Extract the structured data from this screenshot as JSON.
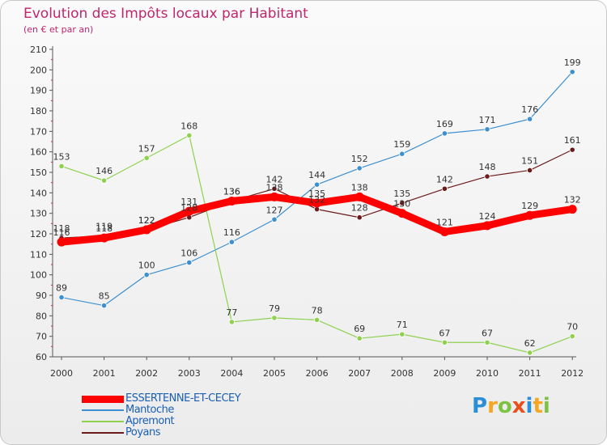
{
  "title": "Evolution des Impôts locaux par Habitant",
  "subtitle": "(en € et par an)",
  "logo": {
    "text": "Proxiti",
    "colors": [
      "#2a8fd6",
      "#f5a623",
      "#7dc242",
      "#e94e1b",
      "#2a8fd6",
      "#f5a623",
      "#7dc242"
    ]
  },
  "chart_data": {
    "type": "line",
    "title": "Evolution des Impôts locaux par Habitant",
    "subtitle": "(en € et par an)",
    "xlabel": "",
    "ylabel": "",
    "ylim": [
      60,
      210
    ],
    "yticks": [
      60,
      70,
      80,
      90,
      100,
      110,
      120,
      130,
      140,
      150,
      160,
      170,
      180,
      190,
      200,
      210
    ],
    "grid": false,
    "legend_position": "bottom-left",
    "categories": [
      "2000",
      "2001",
      "2002",
      "2003",
      "2004",
      "2005",
      "2006",
      "2007",
      "2008",
      "2009",
      "2010",
      "2011",
      "2012"
    ],
    "series": [
      {
        "name": "Mantoche",
        "color": "#3d8fcf",
        "marker": "#3d8fcf",
        "thick": false,
        "values": [
          89,
          85,
          100,
          106,
          116,
          127,
          144,
          152,
          159,
          169,
          171,
          176,
          199
        ]
      },
      {
        "name": "Apremont",
        "color": "#8fd14f",
        "marker": "#8fd14f",
        "thick": false,
        "values": [
          153,
          146,
          157,
          168,
          77,
          79,
          78,
          69,
          71,
          67,
          67,
          62,
          70
        ]
      },
      {
        "name": "Poyans",
        "color": "#6b1b1b",
        "marker": "#6b1b1b",
        "thick": false,
        "values": [
          118,
          119,
          122,
          128,
          136,
          142,
          132,
          128,
          135,
          142,
          148,
          151,
          161
        ]
      },
      {
        "name": "ESSERTENNE-ET-CECEY",
        "color": "#ff0000",
        "marker": "#ff0000",
        "thick": true,
        "values": [
          116,
          118,
          122,
          131,
          136,
          138,
          135,
          138,
          130,
          121,
          124,
          129,
          132
        ]
      }
    ],
    "legend_order": [
      "ESSERTENNE-ET-CECEY",
      "Mantoche",
      "Apremont",
      "Poyans"
    ]
  }
}
